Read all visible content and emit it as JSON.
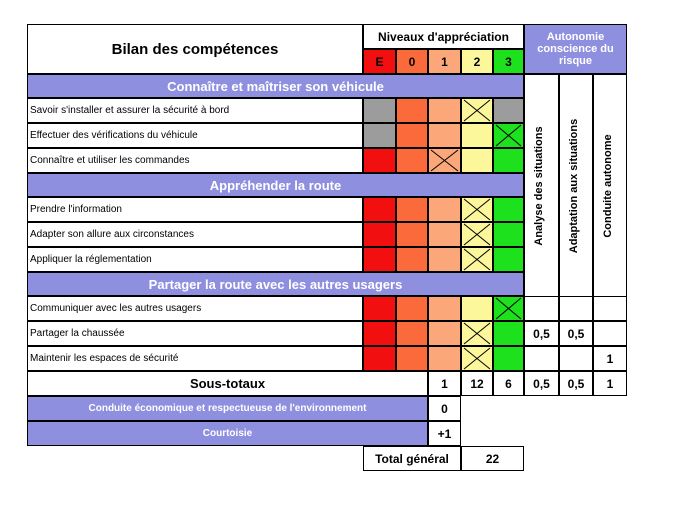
{
  "title": "Bilan des compétences",
  "levels_header": "Niveaux d'appréciation",
  "level_labels": [
    "E",
    "0",
    "1",
    "2",
    "3"
  ],
  "autonomy_header": "Autonomie conscience du risque",
  "autonomy_columns": [
    "Analyse des situations",
    "Adaptation aux situations",
    "Conduite autonome"
  ],
  "sections": [
    {
      "title": "Connaître et maîtriser son véhicule",
      "rows": [
        {
          "label": "Savoir s'installer et assurer la sécurité à bord",
          "marked_level": "2",
          "grey_levels": [
            "E",
            "3"
          ]
        },
        {
          "label": "Effectuer des vérifications du véhicule",
          "marked_level": "3",
          "grey_levels": [
            "E"
          ]
        },
        {
          "label": "Connaître et utiliser les commandes",
          "marked_level": "1",
          "grey_levels": []
        }
      ]
    },
    {
      "title": "Appréhender la route",
      "rows": [
        {
          "label": "Prendre l'information",
          "marked_level": "2",
          "grey_levels": []
        },
        {
          "label": "Adapter son allure aux circonstances",
          "marked_level": "2",
          "grey_levels": []
        },
        {
          "label": "Appliquer la réglementation",
          "marked_level": "2",
          "grey_levels": []
        }
      ]
    },
    {
      "title": "Partager la route avec les autres usagers",
      "rows": [
        {
          "label": "Communiquer avec les autres usagers",
          "marked_level": "3",
          "grey_levels": []
        },
        {
          "label": "Partager la chaussée",
          "marked_level": "2",
          "grey_levels": []
        },
        {
          "label": "Maintenir les espaces de sécurité",
          "marked_level": "2",
          "grey_levels": []
        }
      ]
    }
  ],
  "autonomy_values": {
    "partager": [
      "0,5",
      "0,5",
      ""
    ],
    "maintenir": [
      "",
      "",
      "1"
    ]
  },
  "subtotals": {
    "label": "Sous-totaux",
    "level_1": "1",
    "level_2": "12",
    "level_3": "6",
    "autonomy": [
      "0,5",
      "0,5",
      "1"
    ]
  },
  "bonus": [
    {
      "label": "Conduite économique et respectueuse de l'environnement",
      "value": "0"
    },
    {
      "label": "Courtoisie",
      "value": "+1"
    }
  ],
  "total": {
    "label": "Total général",
    "value": "22"
  },
  "colors": {
    "E": "#f20f0f",
    "0": "#fb6a3a",
    "1": "#fca77a",
    "2": "#fdf79c",
    "3": "#1ee11e",
    "grey": "#9c9c9c",
    "band": "#8f8fe0"
  }
}
